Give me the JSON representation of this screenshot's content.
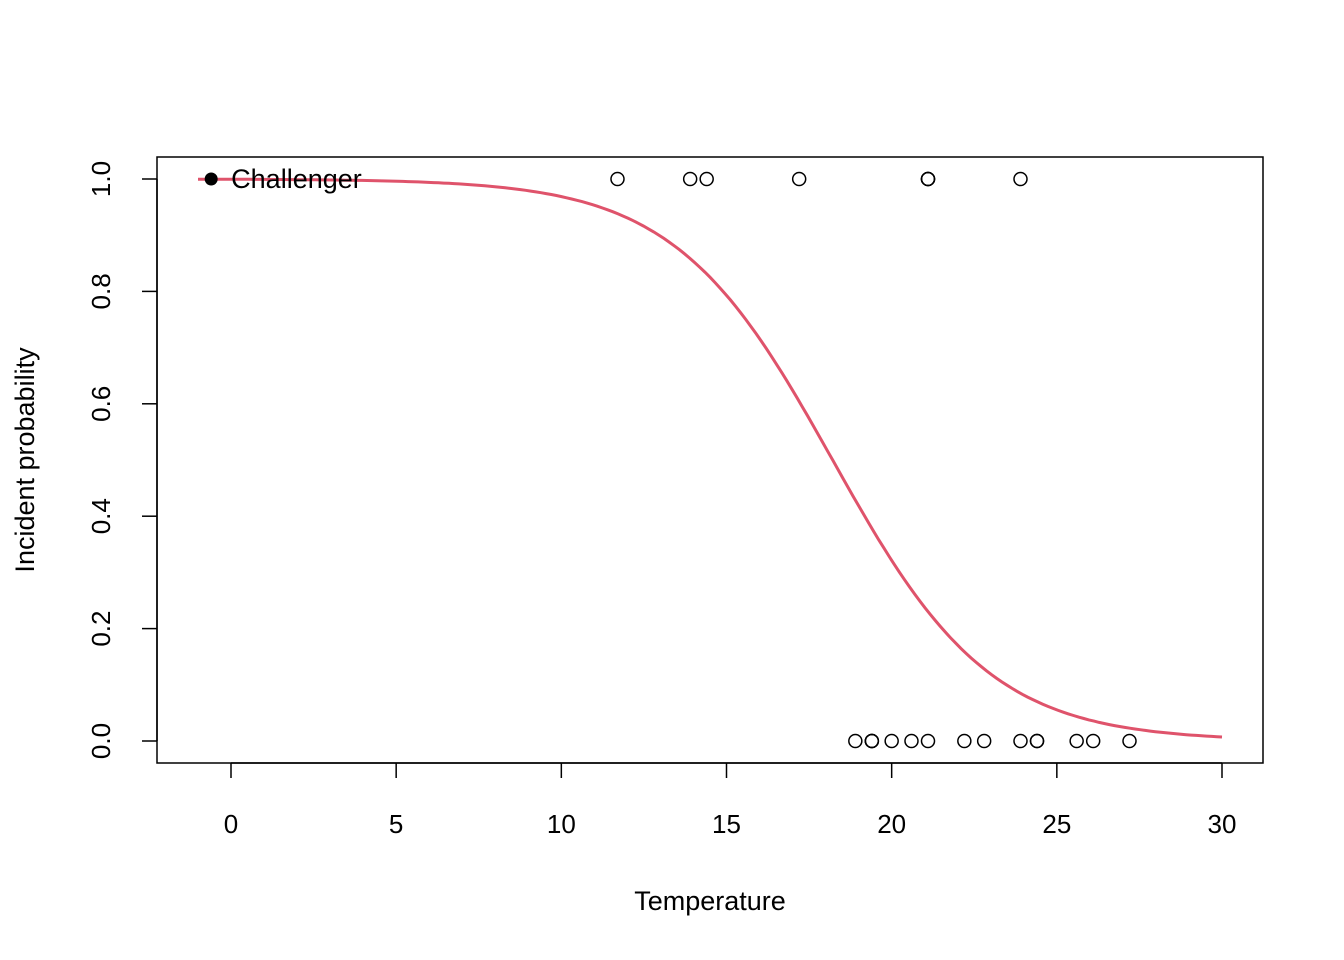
{
  "chart_data": {
    "type": "scatter",
    "title": "",
    "xlabel": "Temperature",
    "ylabel": "Incident probability",
    "xlim": [
      -2.2,
      31.2
    ],
    "ylim": [
      -0.04,
      1.04
    ],
    "grid": false,
    "x_ticks": [
      "0",
      "5",
      "10",
      "15",
      "20",
      "25",
      "30"
    ],
    "x_tick_values": [
      0,
      5,
      10,
      15,
      20,
      25,
      30
    ],
    "y_ticks": [
      "0.0",
      "0.2",
      "0.4",
      "0.6",
      "0.8",
      "1.0"
    ],
    "y_tick_values": [
      0,
      0.2,
      0.4,
      0.6,
      0.8,
      1.0
    ],
    "points": {
      "x": [
        18.9,
        21.1,
        20.6,
        20.0,
        19.4,
        22.2,
        22.8,
        21.1,
        13.9,
        17.2,
        21.1,
        25.6,
        19.4,
        11.7,
        19.4,
        23.9,
        21.1,
        27.2,
        24.4,
        26.1,
        23.9,
        24.4,
        14.4
      ],
      "y": [
        0,
        1,
        0,
        0,
        0,
        0,
        0,
        0,
        1,
        1,
        1,
        0,
        0,
        1,
        0,
        0,
        1,
        0,
        0,
        0,
        1,
        0,
        1
      ],
      "style": "open-circle"
    },
    "highlight": {
      "x": -0.6,
      "y": 1,
      "label": "Challenger",
      "style": "filled-circle"
    },
    "curve": {
      "type": "logistic",
      "intercept": 7.613,
      "slope": -0.418,
      "x_range": [
        -1,
        30
      ],
      "color": "#DF536B"
    }
  }
}
